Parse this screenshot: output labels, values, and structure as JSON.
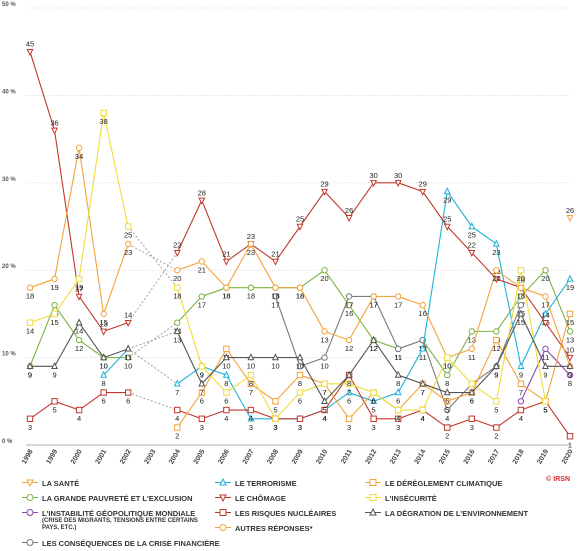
{
  "chart_data": {
    "type": "line",
    "x": [
      "1998",
      "1999",
      "2000",
      "2001",
      "2002",
      "2003",
      "2004",
      "2005",
      "2006",
      "2007",
      "2008",
      "2009",
      "2010",
      "2011",
      "2012",
      "2013",
      "2014",
      "2015",
      "2016",
      "2017",
      "2018",
      "2019",
      "2020"
    ],
    "ylim": [
      0,
      50
    ],
    "yticks": [
      0,
      10,
      20,
      30,
      40,
      50
    ],
    "ytick_labels": [
      "0 %",
      "10 %",
      "20 %",
      "30 %",
      "40 %",
      "50 %"
    ],
    "highlight_x": "2020",
    "grid": true,
    "series": [
      {
        "key": "sante",
        "name": "LA SANTÉ",
        "color": "#f2a33a",
        "marker": "triangle-down",
        "values": [
          null,
          null,
          null,
          null,
          null,
          null,
          null,
          null,
          null,
          null,
          null,
          null,
          null,
          null,
          null,
          null,
          null,
          null,
          null,
          null,
          null,
          null,
          26
        ]
      },
      {
        "key": "pauvrete",
        "name": "LA GRANDE PAUVRETÉ ET L'EXCLUSION",
        "color": "#7cb342",
        "marker": "circle",
        "values": [
          9,
          16,
          12,
          10,
          10,
          null,
          14,
          17,
          18,
          18,
          18,
          18,
          20,
          16,
          12,
          11,
          12,
          8,
          13,
          13,
          17,
          20,
          13
        ]
      },
      {
        "key": "instabilite",
        "name": "L'INSTABILITÉ GÉOPOLITIQUE MONDIALE",
        "sub": "(CRISE DES MIGRANTS, TENSIONS ENTRE CERTAINS PAYS, ETC.)",
        "color": "#8e44ad",
        "marker": "circle",
        "values": [
          null,
          null,
          null,
          null,
          null,
          null,
          null,
          null,
          null,
          null,
          null,
          null,
          null,
          null,
          null,
          null,
          null,
          null,
          null,
          null,
          5,
          11,
          8
        ]
      },
      {
        "key": "crise",
        "name": "LES CONSÉQUENCES DE LA CRISE FINANCIÈRE",
        "color": "#7a7a7a",
        "marker": "circle",
        "values": [
          null,
          null,
          null,
          null,
          null,
          null,
          null,
          null,
          null,
          null,
          17,
          9,
          10,
          17,
          17,
          11,
          12,
          4,
          7,
          9,
          16,
          null,
          null
        ]
      },
      {
        "key": "terrorisme",
        "name": "LE TERRORISME",
        "color": "#1fb1d8",
        "marker": "triangle-up",
        "values": [
          null,
          null,
          null,
          8,
          11,
          null,
          7,
          9,
          8,
          3,
          3,
          3,
          4,
          6,
          5,
          6,
          11,
          29,
          25,
          23,
          9,
          15,
          19
        ]
      },
      {
        "key": "chomage",
        "name": "LE CHÔMAGE",
        "color": "#c0392b",
        "marker": "triangle-down",
        "values": [
          45,
          36,
          17,
          13,
          14,
          null,
          22,
          28,
          21,
          23,
          21,
          25,
          29,
          26,
          30,
          30,
          29,
          25,
          22,
          19,
          18,
          14,
          10
        ]
      },
      {
        "key": "nucleaires",
        "name": "LES RISQUES NUCLÉAIRES",
        "color": "#c0392b",
        "marker": "square",
        "values": [
          3,
          5,
          4,
          6,
          6,
          null,
          4,
          3,
          4,
          4,
          3,
          3,
          4,
          8,
          3,
          3,
          4,
          2,
          3,
          2,
          4,
          5,
          1
        ]
      },
      {
        "key": "autres",
        "name": "AUTRES RÉPONSES*",
        "color": "#f2a33a",
        "marker": "circle",
        "values": [
          18,
          19,
          34,
          15,
          23,
          null,
          20,
          21,
          18,
          23,
          18,
          18,
          13,
          12,
          17,
          17,
          16,
          10,
          11,
          20,
          18,
          17,
          9
        ]
      },
      {
        "key": "climat",
        "name": "LE DÉRÈGLEMENT CLIMATIQUE",
        "color": "#f2a33a",
        "marker": "square",
        "values": [
          null,
          null,
          null,
          null,
          null,
          null,
          2,
          6,
          11,
          7,
          5,
          8,
          7,
          3,
          6,
          4,
          7,
          5,
          6,
          12,
          7,
          5,
          15
        ]
      },
      {
        "key": "insecurite",
        "name": "L'INSÉCURITÉ",
        "color": "#f0dc3a",
        "marker": "square",
        "values": [
          14,
          15,
          19,
          38,
          25,
          null,
          18,
          9,
          6,
          8,
          3,
          6,
          7,
          7,
          6,
          4,
          4,
          10,
          7,
          5,
          20,
          5,
          null
        ]
      },
      {
        "key": "environnement",
        "name": "LA DÉGRATION DE L'ENVIRONNEMENT",
        "color": "#555555",
        "marker": "triangle-up",
        "values": [
          9,
          9,
          14,
          10,
          11,
          null,
          13,
          7,
          10,
          10,
          10,
          10,
          5,
          8,
          12,
          8,
          7,
          6,
          6,
          9,
          15,
          9,
          9
        ]
      }
    ],
    "gap_dashed": {
      "from": "2002",
      "to": "2004"
    }
  },
  "legend": [
    {
      "key": "sante",
      "label": "LA SANTÉ"
    },
    {
      "key": "terrorisme",
      "label": "LE TERRORISME"
    },
    {
      "key": "climat",
      "label": "LE DÉRÈGLEMENT CLIMATIQUE"
    },
    {
      "key": "pauvrete",
      "label": "LA GRANDE PAUVRETÉ ET L'EXCLUSION"
    },
    {
      "key": "chomage",
      "label": "LE CHÔMAGE"
    },
    {
      "key": "insecurite",
      "label": "L'INSÉCURITÉ"
    },
    {
      "key": "instabilite",
      "label": "L'INSTABILITÉ GÉOPOLITIQUE MONDIALE",
      "sub": "(CRISE DES MIGRANTS, TENSIONS ENTRE CERTAINS PAYS, ETC.)"
    },
    {
      "key": "nucleaires",
      "label": "LES RISQUES NUCLÉAIRES"
    },
    {
      "key": "environnement",
      "label": "LA DÉGRATION DE L'ENVIRONNEMENT"
    },
    {
      "key": "autres",
      "label": "AUTRES RÉPONSES*"
    },
    {
      "key": "crise",
      "label": "LES CONSÉQUENCES DE LA CRISE FINANCIÈRE"
    }
  ],
  "source": "© IRSN"
}
